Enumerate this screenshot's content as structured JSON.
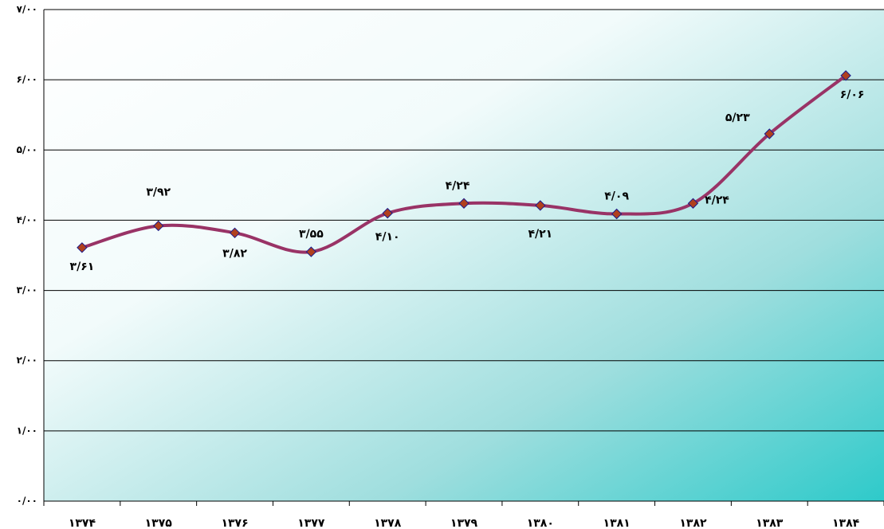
{
  "chart_data": {
    "type": "line",
    "categories": [
      "۱۳۷۴",
      "۱۳۷۵",
      "۱۳۷۶",
      "۱۳۷۷",
      "۱۳۷۸",
      "۱۳۷۹",
      "۱۳۸۰",
      "۱۳۸۱",
      "۱۳۸۲",
      "۱۳۸۳",
      "۱۳۸۴"
    ],
    "series": [
      {
        "color": "#993366",
        "marker_color": "#b0401e",
        "values": [
          3.61,
          3.92,
          3.82,
          3.55,
          4.1,
          4.24,
          4.21,
          4.09,
          4.24,
          5.23,
          6.06
        ],
        "value_labels": [
          "۳/۶۱",
          "۳/۹۲",
          "۳/۸۲",
          "۳/۵۵",
          "۴/۱۰",
          "۴/۲۴",
          "۴/۲۱",
          "۴/۰۹",
          "۴/۲۴",
          "۵/۲۳",
          "۶/۰۶"
        ]
      }
    ],
    "ylim": [
      0,
      7
    ],
    "yticks": [
      {
        "value": 0,
        "label": "۰/۰۰"
      },
      {
        "value": 1,
        "label": "۱/۰۰"
      },
      {
        "value": 2,
        "label": "۲/۰۰"
      },
      {
        "value": 3,
        "label": "۳/۰۰"
      },
      {
        "value": 4,
        "label": "۴/۰۰"
      },
      {
        "value": 5,
        "label": "۵/۰۰"
      },
      {
        "value": 6,
        "label": "۶/۰۰"
      },
      {
        "value": 7,
        "label": "۷/۰۰"
      }
    ],
    "grid": true
  }
}
